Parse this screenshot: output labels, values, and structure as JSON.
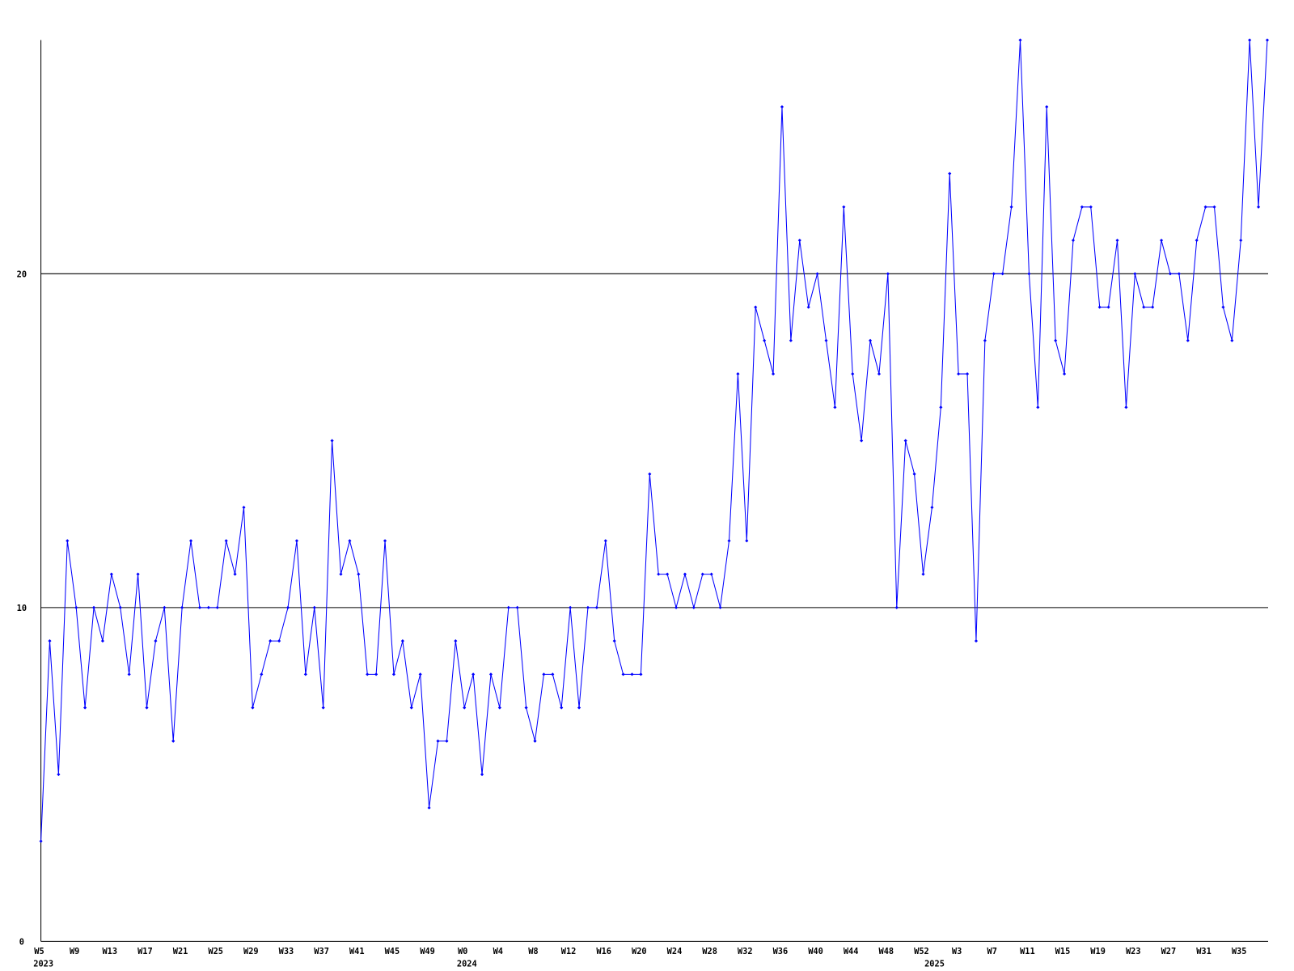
{
  "chart_data": {
    "type": "line",
    "categories": [
      "W5",
      null,
      null,
      null,
      "W9",
      null,
      null,
      null,
      "W13",
      null,
      null,
      null,
      "W17",
      null,
      null,
      null,
      "W21",
      null,
      null,
      null,
      "W25",
      null,
      null,
      null,
      "W29",
      null,
      null,
      null,
      "W33",
      null,
      null,
      null,
      "W37",
      null,
      null,
      null,
      "W41",
      null,
      null,
      null,
      "W45",
      null,
      null,
      null,
      "W49",
      null,
      null,
      null,
      "W0",
      null,
      null,
      null,
      "W4",
      null,
      null,
      null,
      "W8",
      null,
      null,
      null,
      "W12",
      null,
      null,
      null,
      "W16",
      null,
      null,
      null,
      "W20",
      null,
      null,
      null,
      "W24",
      null,
      null,
      null,
      "W28",
      null,
      null,
      null,
      "W32",
      null,
      null,
      null,
      "W36",
      null,
      null,
      null,
      "W40",
      null,
      null,
      null,
      "W44",
      null,
      null,
      null,
      "W48",
      null,
      null,
      null,
      "W52",
      null,
      null,
      null,
      "W3",
      null,
      null,
      null,
      "W7",
      null,
      null,
      null,
      "W11",
      null,
      null,
      null,
      "W15",
      null,
      null,
      null,
      "W19",
      null,
      null,
      null,
      "W23",
      null,
      null,
      null,
      "W27",
      null,
      null,
      null,
      "W31",
      null,
      null,
      null,
      "W35",
      null,
      null,
      null
    ],
    "category_years": [
      "2023",
      null,
      null,
      null,
      null,
      null,
      null,
      null,
      null,
      null,
      null,
      null,
      null,
      null,
      null,
      null,
      null,
      null,
      null,
      null,
      null,
      null,
      null,
      null,
      null,
      null,
      null,
      null,
      null,
      null,
      null,
      null,
      null,
      null,
      null,
      null,
      null,
      null,
      null,
      null,
      null,
      null,
      null,
      null,
      null,
      null,
      null,
      null,
      "2024",
      null,
      null,
      null,
      null,
      null,
      null,
      null,
      null,
      null,
      null,
      null,
      null,
      null,
      null,
      null,
      null,
      null,
      null,
      null,
      null,
      null,
      null,
      null,
      null,
      null,
      null,
      null,
      null,
      null,
      null,
      null,
      null,
      null,
      null,
      null,
      null,
      null,
      null,
      null,
      null,
      null,
      null,
      null,
      null,
      null,
      null,
      null,
      null,
      null,
      null,
      null,
      null,
      "2025",
      null,
      null,
      null,
      null,
      null,
      null,
      null,
      null,
      null,
      null,
      null,
      null,
      null,
      null,
      null,
      null,
      null,
      null,
      null,
      null,
      null,
      null,
      null,
      null,
      null,
      null,
      null,
      null,
      null,
      null,
      null,
      null,
      null,
      null,
      null,
      null,
      null,
      null
    ],
    "series": [
      {
        "color": "#0000ff",
        "values": [
          3,
          9,
          5,
          12,
          10,
          7,
          10,
          9,
          11,
          10,
          8,
          11,
          7,
          9,
          10,
          6,
          10,
          12,
          10,
          10,
          10,
          12,
          11,
          13,
          7,
          8,
          9,
          9,
          10,
          12,
          8,
          10,
          7,
          15,
          11,
          12,
          11,
          8,
          8,
          12,
          8,
          9,
          7,
          8,
          4,
          6,
          6,
          9,
          7,
          8,
          5,
          8,
          7,
          10,
          10,
          7,
          6,
          8,
          8,
          7,
          10,
          7,
          10,
          10,
          12,
          9,
          8,
          8,
          8,
          14,
          11,
          11,
          10,
          11,
          10,
          11,
          11,
          10,
          12,
          17,
          12,
          19,
          18,
          17,
          25,
          18,
          21,
          19,
          20,
          18,
          16,
          22,
          17,
          15,
          18,
          17,
          20,
          10,
          15,
          14,
          11,
          13,
          16,
          23,
          17,
          17,
          9,
          18,
          20,
          20,
          22,
          27,
          20,
          16,
          25,
          18,
          17,
          21,
          22,
          22,
          19,
          19,
          21,
          16,
          20,
          19,
          19,
          21,
          20,
          20,
          18,
          21,
          22,
          22,
          19,
          18,
          21,
          27,
          22,
          27
        ]
      }
    ],
    "ylim": [
      0,
      27
    ],
    "yticks": [
      0,
      10,
      20
    ],
    "grid": true,
    "grid_color": "#000000"
  }
}
